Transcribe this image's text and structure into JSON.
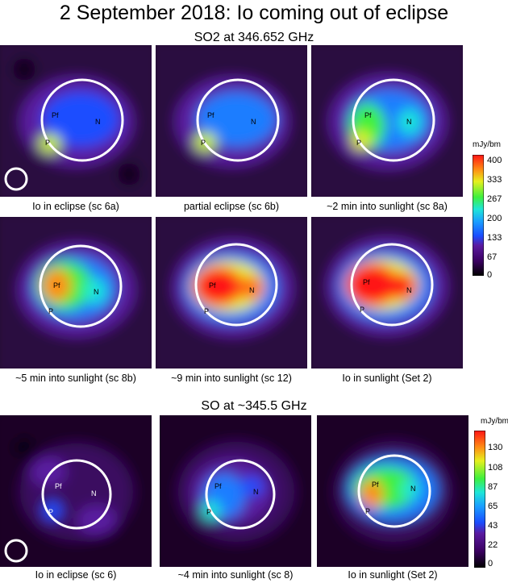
{
  "title": "2 September 2018: Io coming out of eclipse",
  "section1": {
    "heading": "SO2 at 346.652 GHz",
    "captions": [
      "Io in eclipse (sc 6a)",
      "partial eclipse (sc 6b)",
      "~2 min into sunlight (sc 8a)",
      "~5 min into sunlight (sc 8b)",
      "~9 min into sunlight (sc 12)",
      "Io in sunlight (Set 2)"
    ],
    "colorbar": {
      "unit": "mJy/bm",
      "ticks": [
        "400",
        "333",
        "267",
        "200",
        "133",
        "67",
        "0"
      ]
    }
  },
  "section2": {
    "heading": "SO at ~345.5 GHz",
    "captions": [
      "Io in eclipse (sc 6)",
      "~4 min into sunlight (sc 8)",
      "Io in sunlight (Set 2)"
    ],
    "colorbar": {
      "unit": "mJy/bm",
      "ticks": [
        "130",
        "108",
        "87",
        "65",
        "43",
        "22",
        "0"
      ]
    }
  },
  "markers": {
    "pf": "Pf",
    "n": "N",
    "p": "P"
  }
}
